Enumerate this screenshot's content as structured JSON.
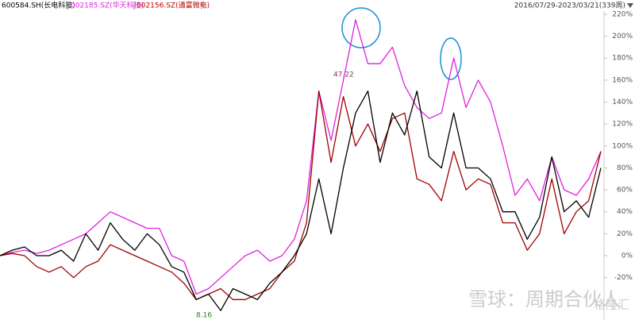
{
  "chart_data": {
    "type": "line",
    "period": "2016/07/29-2023/03/21(339周)",
    "categories": [
      null,
      null,
      null,
      null,
      null,
      null,
      null,
      null,
      null,
      null,
      null,
      null,
      null,
      null,
      null,
      null,
      null,
      null,
      null,
      null,
      null,
      null,
      null,
      null,
      null,
      null,
      null,
      null,
      null,
      null,
      null,
      null,
      null,
      null,
      null,
      null,
      null,
      null,
      null,
      null,
      null,
      null,
      null,
      null,
      null,
      null,
      null,
      null,
      null,
      null
    ],
    "series": [
      {
        "name": "600584.SH(长电科技)",
        "color": "#000000",
        "values": [
          0,
          5,
          8,
          0,
          0,
          5,
          -5,
          20,
          5,
          30,
          15,
          5,
          20,
          10,
          -10,
          -15,
          -40,
          -35,
          -50,
          -30,
          -35,
          -40,
          -25,
          -15,
          0,
          20,
          70,
          20,
          80,
          130,
          150,
          85,
          130,
          110,
          150,
          90,
          80,
          130,
          80,
          80,
          70,
          40,
          40,
          15,
          35,
          90,
          40,
          50,
          35,
          80
        ]
      },
      {
        "name": "002185.SZ(华天科技)",
        "color": "#e020e0",
        "values": [
          0,
          3,
          5,
          2,
          5,
          10,
          15,
          20,
          30,
          40,
          35,
          30,
          25,
          25,
          0,
          -5,
          -35,
          -30,
          -20,
          -10,
          0,
          5,
          -5,
          0,
          15,
          50,
          150,
          105,
          160,
          215,
          175,
          175,
          190,
          155,
          135,
          125,
          130,
          180,
          135,
          160,
          140,
          100,
          55,
          70,
          50,
          90,
          60,
          55,
          70,
          95
        ]
      },
      {
        "name": "002156.SZ(通富微电)",
        "color": "#a00000",
        "values": [
          0,
          2,
          0,
          -10,
          -15,
          -10,
          -20,
          -10,
          -5,
          10,
          5,
          0,
          -5,
          -10,
          -15,
          -25,
          -40,
          -35,
          -30,
          -40,
          -40,
          -35,
          -30,
          -15,
          -5,
          30,
          150,
          85,
          145,
          100,
          120,
          95,
          125,
          130,
          70,
          65,
          50,
          95,
          60,
          70,
          65,
          30,
          30,
          5,
          20,
          70,
          20,
          40,
          50,
          95
        ]
      }
    ],
    "ylim": [
      -58.6,
      233
    ],
    "yticks": [
      {
        "value": -20,
        "label": "-20%"
      },
      {
        "value": 0,
        "label": "0%"
      },
      {
        "value": 20,
        "label": "20%"
      },
      {
        "value": 40,
        "label": "40%"
      },
      {
        "value": 60,
        "label": "60%"
      },
      {
        "value": 80,
        "label": "80%"
      },
      {
        "value": 100,
        "label": "100%"
      },
      {
        "value": 120,
        "label": "120%"
      },
      {
        "value": 140,
        "label": "140%"
      },
      {
        "value": 160,
        "label": "160%"
      },
      {
        "value": 180,
        "label": "180%"
      },
      {
        "value": 200,
        "label": "200%"
      },
      {
        "value": 220,
        "label": "220%"
      }
    ],
    "y_axis_position": "right",
    "grid": false,
    "annotations": [
      {
        "text": "47.22",
        "color": "#8a3a5a"
      },
      {
        "text": "8.16",
        "color": "#208020"
      }
    ],
    "watermark": [
      "雪球：周期合伙人",
      "格隆汇"
    ]
  }
}
